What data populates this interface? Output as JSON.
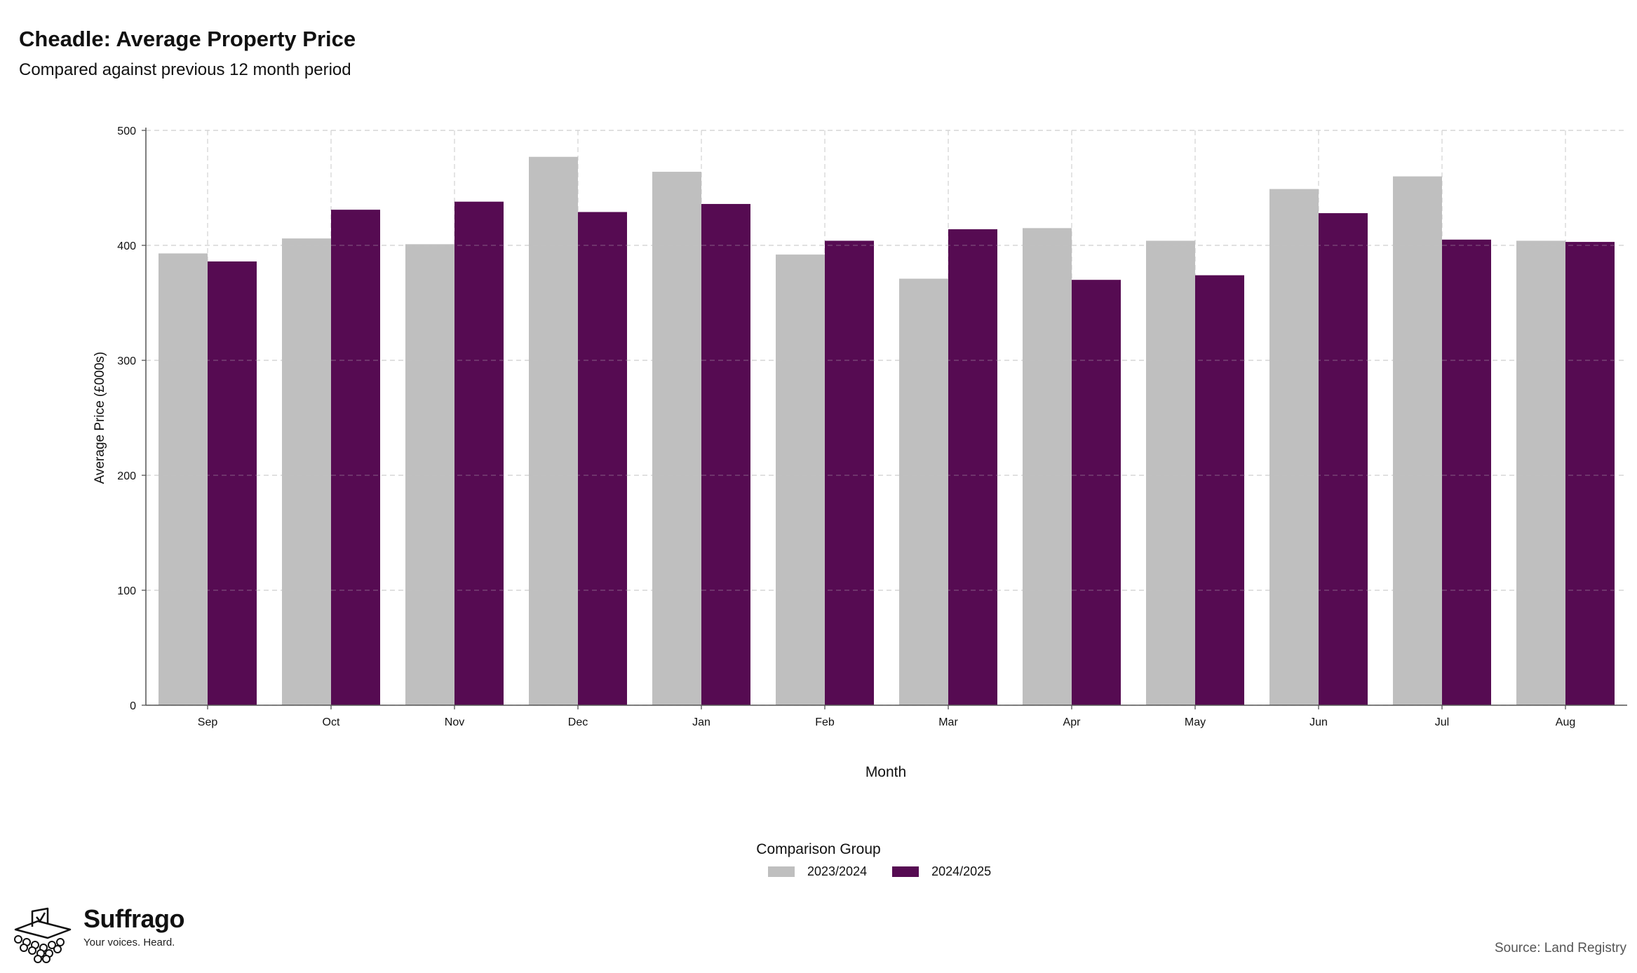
{
  "title": "Cheadle: Average Property Price",
  "subtitle": "Compared against previous 12 month period",
  "legend": {
    "title": "Comparison Group",
    "items": [
      {
        "label": "2023/2024",
        "color": "#bfbfbf"
      },
      {
        "label": "2024/2025",
        "color": "#560b52"
      }
    ]
  },
  "branding": {
    "name": "Suffrago",
    "tagline": "Your voices. Heard."
  },
  "source": "Source: Land Registry",
  "chart_data": {
    "type": "bar",
    "categories": [
      "Sep",
      "Oct",
      "Nov",
      "Dec",
      "Jan",
      "Feb",
      "Mar",
      "Apr",
      "May",
      "Jun",
      "Jul",
      "Aug"
    ],
    "series": [
      {
        "name": "2023/2024",
        "color": "#bfbfbf",
        "values": [
          393,
          406,
          401,
          477,
          464,
          392,
          371,
          415,
          404,
          449,
          460,
          404
        ]
      },
      {
        "name": "2024/2025",
        "color": "#560b52",
        "values": [
          386,
          431,
          438,
          429,
          436,
          404,
          414,
          370,
          374,
          428,
          405,
          403
        ]
      }
    ],
    "xlabel": "Month",
    "ylabel": "Average Price (£000s)",
    "ylim": [
      0,
      500
    ],
    "yticks": [
      0,
      100,
      200,
      300,
      400,
      500
    ],
    "grid": true,
    "legend_position": "bottom"
  }
}
